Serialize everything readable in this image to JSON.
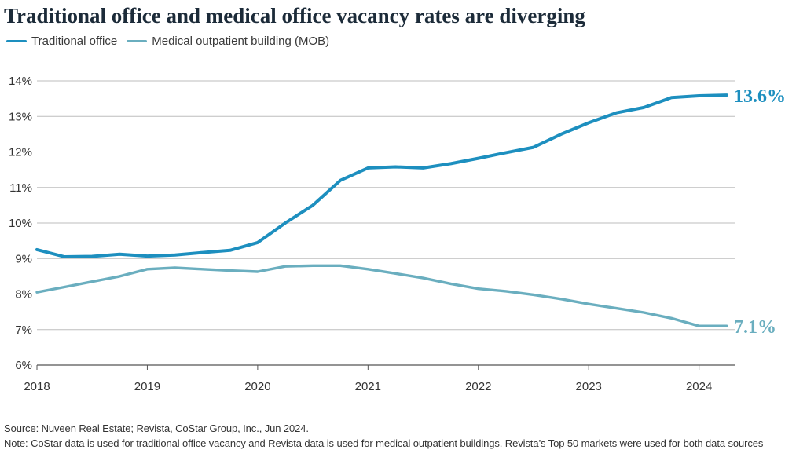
{
  "chart_data": {
    "type": "line",
    "title": "Traditional office and medical office vacancy rates are diverging",
    "xlabel": "",
    "ylabel": "",
    "ylim": [
      6,
      14
    ],
    "xlim": [
      2018,
      2024.33
    ],
    "y_ticks": [
      6,
      7,
      8,
      9,
      10,
      11,
      12,
      13,
      14
    ],
    "y_tick_labels": [
      "6%",
      "7%",
      "8%",
      "9%",
      "10%",
      "11%",
      "12%",
      "13%",
      "14%"
    ],
    "x_ticks": [
      2018,
      2019,
      2020,
      2021,
      2022,
      2023,
      2024
    ],
    "x_tick_labels": [
      "2018",
      "2019",
      "2020",
      "2021",
      "2022",
      "2023",
      "2024"
    ],
    "x": [
      2018,
      2018.25,
      2018.5,
      2018.75,
      2019,
      2019.25,
      2019.5,
      2019.75,
      2020,
      2020.25,
      2020.5,
      2020.75,
      2021,
      2021.25,
      2021.5,
      2021.75,
      2022,
      2022.25,
      2022.5,
      2022.75,
      2023,
      2023.25,
      2023.5,
      2023.75,
      2024,
      2024.25
    ],
    "series": [
      {
        "name": "Traditional office",
        "color": "#1d8fbf",
        "values": [
          9.25,
          9.05,
          9.06,
          9.12,
          9.07,
          9.1,
          9.17,
          9.23,
          9.45,
          10.0,
          10.5,
          11.2,
          11.55,
          11.58,
          11.55,
          11.67,
          11.82,
          11.98,
          12.13,
          12.5,
          12.82,
          13.1,
          13.25,
          13.53,
          13.58,
          13.6
        ],
        "end_label": "13.6%"
      },
      {
        "name": "Medical outpatient building (MOB)",
        "color": "#6aaebf",
        "values": [
          8.05,
          8.2,
          8.35,
          8.5,
          8.7,
          8.74,
          8.7,
          8.66,
          8.63,
          8.78,
          8.8,
          8.8,
          8.7,
          8.58,
          8.45,
          8.29,
          8.15,
          8.08,
          7.98,
          7.86,
          7.72,
          7.6,
          7.48,
          7.32,
          7.1,
          7.1
        ],
        "end_label": "7.1%"
      }
    ],
    "legend": "top-left",
    "grid": true
  },
  "footer": {
    "source": "Source: Nuveen Real Estate; Revista, CoStar Group, Inc., Jun 2024.",
    "note": "Note: CoStar data is used for traditional office vacancy and Revista data is used for medical outpatient buildings. Revista’s Top 50 markets were used for both data sources"
  }
}
